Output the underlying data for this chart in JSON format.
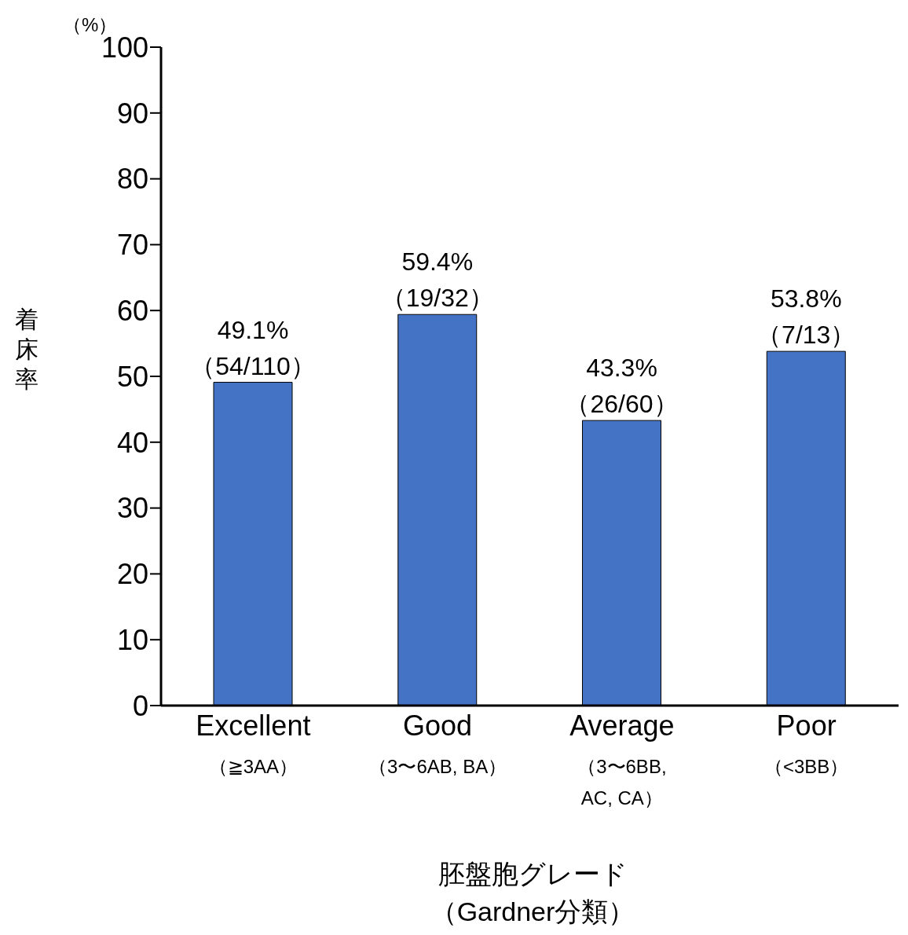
{
  "chart_data": {
    "type": "bar",
    "xlabel": "胚盤胞グレード（Gardner分類）",
    "ylabel": "着床率",
    "annotations": [
      "（%）"
    ],
    "categories": [
      "Excellent\n（≧3AA）",
      "Good\n（3〜6AB, BA）",
      "Average\n（3〜6BB,\nAC, CA）",
      "Poor\n（<3BB）"
    ],
    "values": [
      49.1,
      59.4,
      43.3,
      53.8
    ],
    "value_labels": [
      "49.1%\n（54/110）",
      "59.4%\n（19/32）",
      "43.3%\n（26/60）",
      "53.8%\n（7/13）"
    ],
    "color": "#4472c4",
    "ylim": [
      0,
      100
    ],
    "yticks": [
      0,
      10,
      20,
      30,
      40,
      50,
      60,
      70,
      80,
      90,
      100
    ],
    "grid": false,
    "legend": false
  }
}
